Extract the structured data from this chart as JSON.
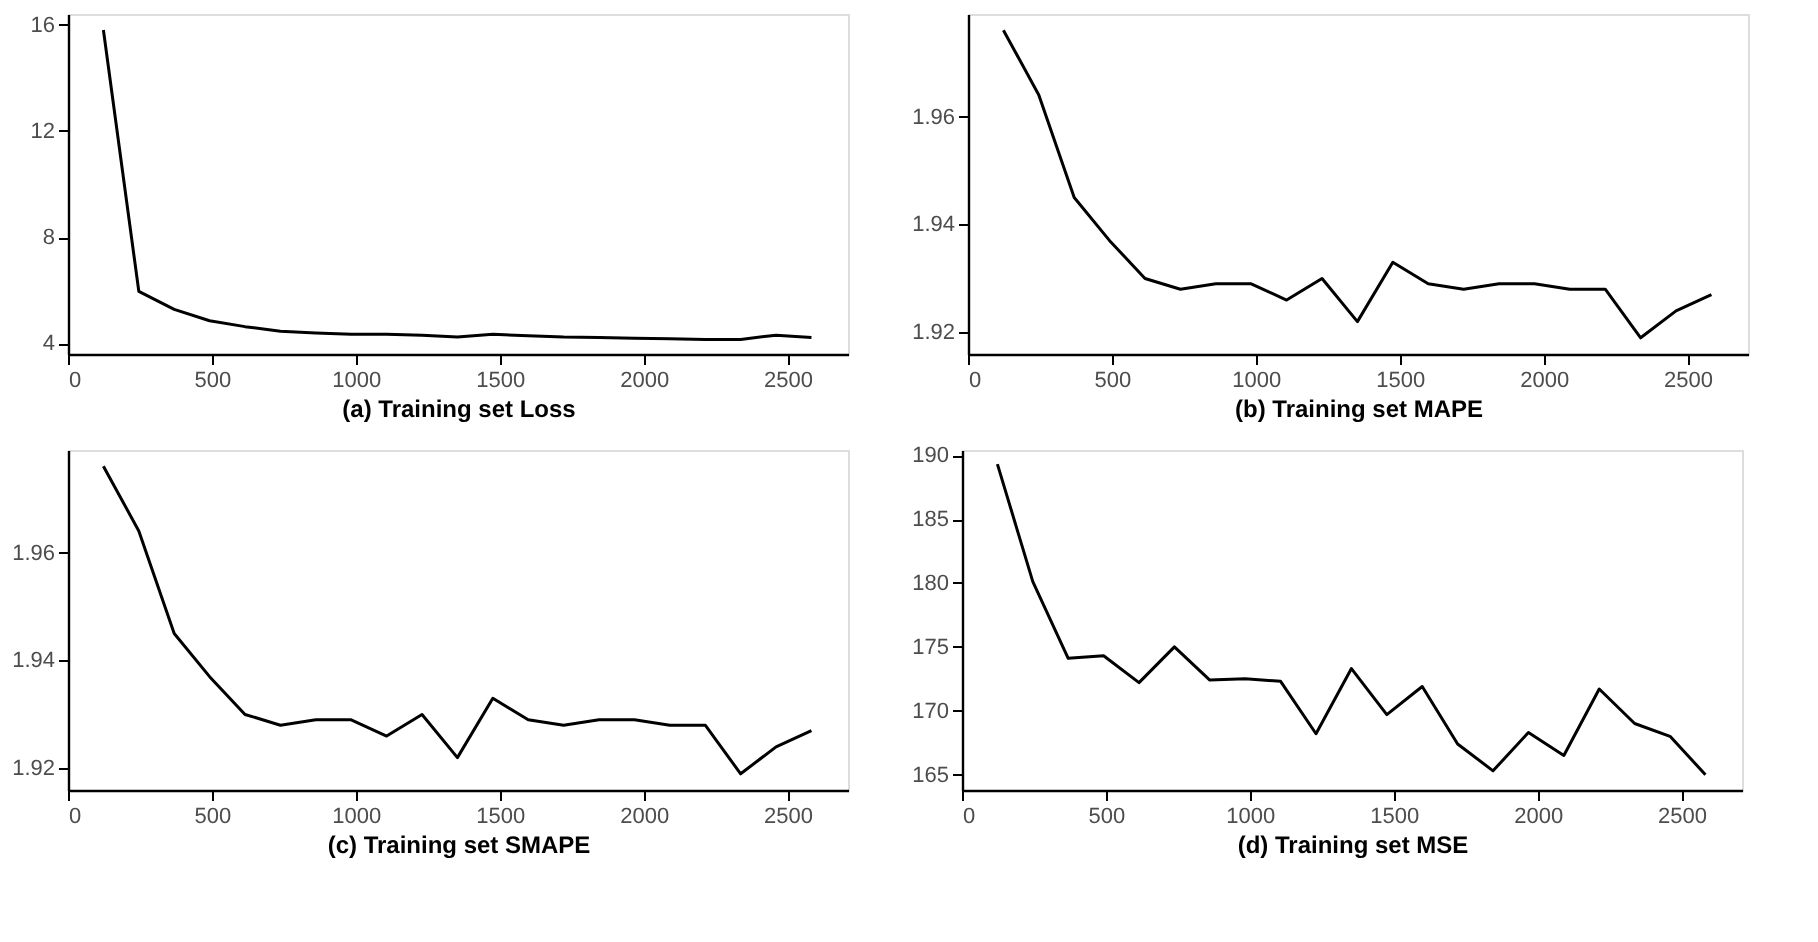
{
  "chart_data": [
    {
      "type": "line",
      "xlabel": "(a) Training set Loss",
      "x": [
        123,
        246,
        369,
        492,
        615,
        738,
        861,
        984,
        1107,
        1230,
        1353,
        1476,
        1599,
        1722,
        1845,
        1968,
        2091,
        2214,
        2337,
        2460,
        2583
      ],
      "series": [
        {
          "color": "#000000",
          "values": [
            15.8,
            5.96,
            5.28,
            4.85,
            4.63,
            4.46,
            4.39,
            4.34,
            4.34,
            4.31,
            4.24,
            4.34,
            4.29,
            4.24,
            4.22,
            4.19,
            4.17,
            4.15,
            4.15,
            4.31,
            4.22
          ]
        }
      ],
      "xlim": [
        0,
        2710
      ],
      "xticks": [
        0,
        500,
        1000,
        1500,
        2000,
        2500
      ],
      "ylim": [
        3.6,
        16.4
      ],
      "yticks": [
        4,
        8,
        12,
        16
      ],
      "grid": false
    },
    {
      "type": "line",
      "xlabel": "(b) Training set MAPE",
      "x": [
        123,
        246,
        369,
        492,
        615,
        738,
        861,
        984,
        1107,
        1230,
        1353,
        1476,
        1599,
        1722,
        1845,
        1968,
        2091,
        2214,
        2337,
        2460,
        2583
      ],
      "series": [
        {
          "color": "#000000",
          "values": [
            1.976,
            1.964,
            1.945,
            1.937,
            1.93,
            1.928,
            1.929,
            1.929,
            1.926,
            1.93,
            1.922,
            1.933,
            1.929,
            1.928,
            1.929,
            1.929,
            1.928,
            1.928,
            1.919,
            1.924,
            1.927
          ]
        }
      ],
      "xlim": [
        0,
        2710
      ],
      "xticks": [
        0,
        500,
        1000,
        1500,
        2000,
        2500
      ],
      "ylim": [
        1.916,
        1.979
      ],
      "yticks": [
        1.92,
        1.94,
        1.96
      ],
      "grid": false
    },
    {
      "type": "line",
      "xlabel": "(c) Training set SMAPE",
      "x": [
        123,
        246,
        369,
        492,
        615,
        738,
        861,
        984,
        1107,
        1230,
        1353,
        1476,
        1599,
        1722,
        1845,
        1968,
        2091,
        2214,
        2337,
        2460,
        2583
      ],
      "series": [
        {
          "color": "#000000",
          "values": [
            1.976,
            1.964,
            1.945,
            1.937,
            1.93,
            1.928,
            1.929,
            1.929,
            1.926,
            1.93,
            1.922,
            1.933,
            1.929,
            1.928,
            1.929,
            1.929,
            1.928,
            1.928,
            1.919,
            1.924,
            1.927
          ]
        }
      ],
      "xlim": [
        0,
        2710
      ],
      "xticks": [
        0,
        500,
        1000,
        1500,
        2000,
        2500
      ],
      "ylim": [
        1.916,
        1.979
      ],
      "yticks": [
        1.92,
        1.94,
        1.96
      ],
      "grid": false
    },
    {
      "type": "line",
      "xlabel": "(d) Training set MSE",
      "x": [
        123,
        246,
        369,
        492,
        615,
        738,
        861,
        984,
        1107,
        1230,
        1353,
        1476,
        1599,
        1722,
        1845,
        1968,
        2091,
        2214,
        2337,
        2460,
        2583
      ],
      "series": [
        {
          "color": "#000000",
          "values": [
            189.3,
            180.1,
            174.1,
            174.3,
            172.2,
            175.0,
            172.4,
            172.5,
            172.3,
            168.2,
            173.3,
            169.7,
            171.9,
            167.4,
            165.3,
            168.3,
            166.5,
            171.7,
            169.0,
            168.0,
            165.0
          ]
        }
      ],
      "xlim": [
        0,
        2710
      ],
      "xticks": [
        0,
        500,
        1000,
        1500,
        2000,
        2500
      ],
      "ylim": [
        163.8,
        190.4
      ],
      "yticks": [
        165,
        170,
        175,
        180,
        185,
        190
      ],
      "grid": false
    }
  ]
}
